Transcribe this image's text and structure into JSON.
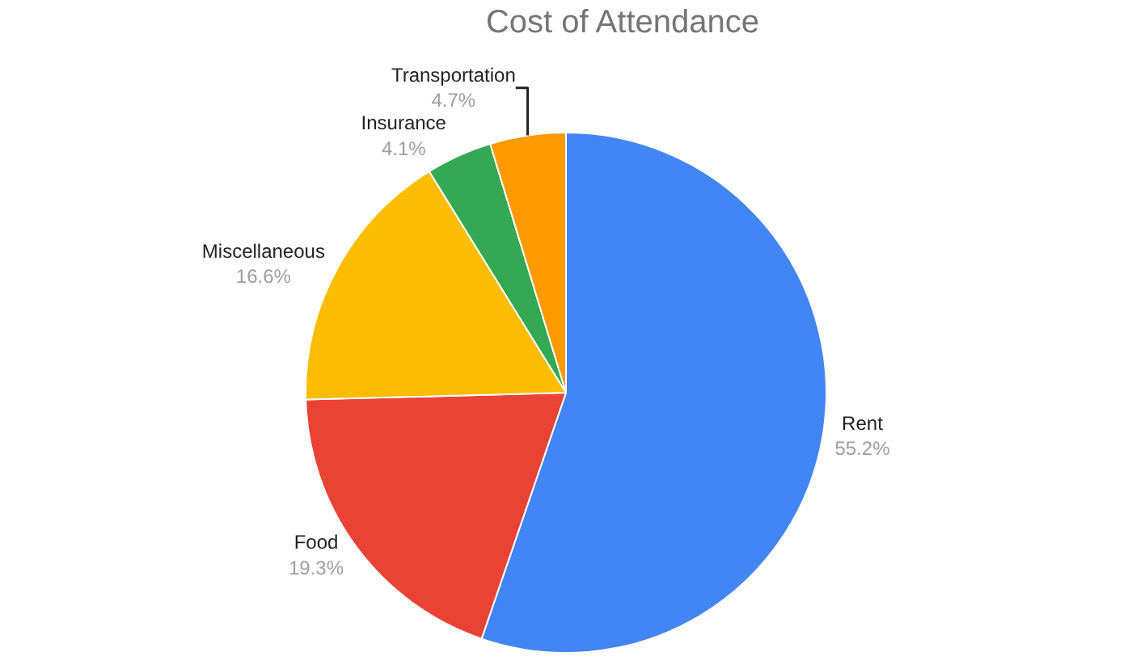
{
  "chart_data": {
    "type": "pie",
    "title": "Cost of Attendance",
    "categories": [
      "Rent",
      "Food",
      "Miscellaneous",
      "Insurance",
      "Transportation"
    ],
    "values": [
      55.2,
      19.3,
      16.6,
      4.1,
      4.7
    ],
    "value_labels": [
      "55.2%",
      "19.3%",
      "16.6%",
      "4.1%",
      "4.7%"
    ],
    "colors": [
      "#4285f4",
      "#ea4335",
      "#fbbc04",
      "#34a853",
      "#ff9900"
    ],
    "legend": false
  }
}
